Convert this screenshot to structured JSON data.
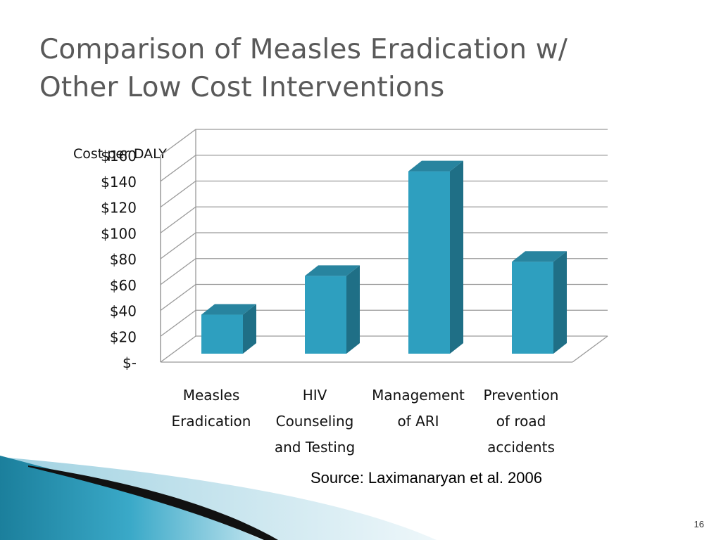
{
  "slide": {
    "title_line1": "Comparison of Measles Eradication w/",
    "title_line2": "Other Low Cost Interventions",
    "source": "Source:  Laximanaryan et al. 2006",
    "page_number": "16"
  },
  "chart_data": {
    "type": "bar",
    "title": "",
    "ylabel": "Cost per DALY",
    "xlabel": "",
    "categories": [
      [
        "Measles",
        "Eradication"
      ],
      [
        "HIV",
        "Counseling",
        "and Testing"
      ],
      [
        "Management",
        "of ARI"
      ],
      [
        "Prevention",
        "of road",
        "accidents"
      ]
    ],
    "values": [
      34,
      64,
      145,
      75
    ],
    "ylim": [
      0,
      160
    ],
    "yticks": [
      0,
      20,
      40,
      60,
      80,
      100,
      120,
      140,
      160
    ],
    "ytick_labels": [
      "$-",
      "$20",
      "$40",
      "$60",
      "$80",
      "$100",
      "$120",
      "$140",
      "$160"
    ],
    "grid": true,
    "bar_color": "#2E9FBF",
    "bar_side_color": "#1F6F86",
    "bar_top_color": "#28849F"
  }
}
